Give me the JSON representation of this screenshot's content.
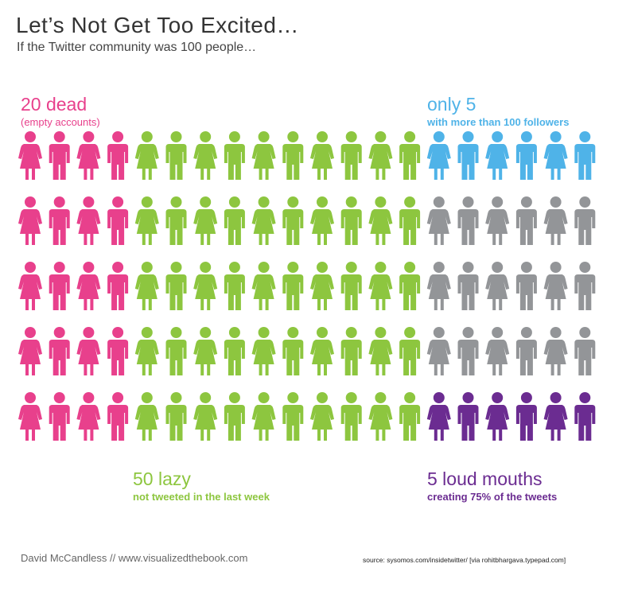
{
  "title": "Let’s Not Get Too Excited…",
  "subtitle": "If the Twitter community was 100 people…",
  "labels": {
    "dead_count": "20 dead",
    "dead_desc": "(empty accounts)",
    "only_count": "only 5",
    "only_desc": "with more than 100 followers",
    "lazy_count": "50 lazy",
    "lazy_desc": "not tweeted in the last week",
    "loud_count": "5 loud mouths",
    "loud_desc": "creating 75% of the tweets"
  },
  "credit": "David McCandless // www.visualizedthebook.com",
  "source": "source: sysomos.com/insidetwitter/  [via rohitbhargava.typepad.com]",
  "colors": {
    "dead": "#E8408C",
    "lazy": "#8DC63F",
    "popular": "#4FB3E8",
    "other": "#939598",
    "loud": "#6B2C91",
    "text": "#333333"
  },
  "chart_data": {
    "type": "pictogram",
    "total": 100,
    "rows": 5,
    "columns": 20,
    "categories": [
      {
        "key": "dead",
        "label": "20 dead",
        "count": 20,
        "color": "#E8408C"
      },
      {
        "key": "lazy",
        "label": "50 lazy",
        "count": 50,
        "color": "#8DC63F"
      },
      {
        "key": "popular",
        "label": "only 5",
        "count": 5,
        "color": "#4FB3E8"
      },
      {
        "key": "other",
        "label": "",
        "count": 20,
        "color": "#939598"
      },
      {
        "key": "loud",
        "label": "5 loud mouths",
        "count": 5,
        "color": "#6B2C91"
      }
    ]
  }
}
